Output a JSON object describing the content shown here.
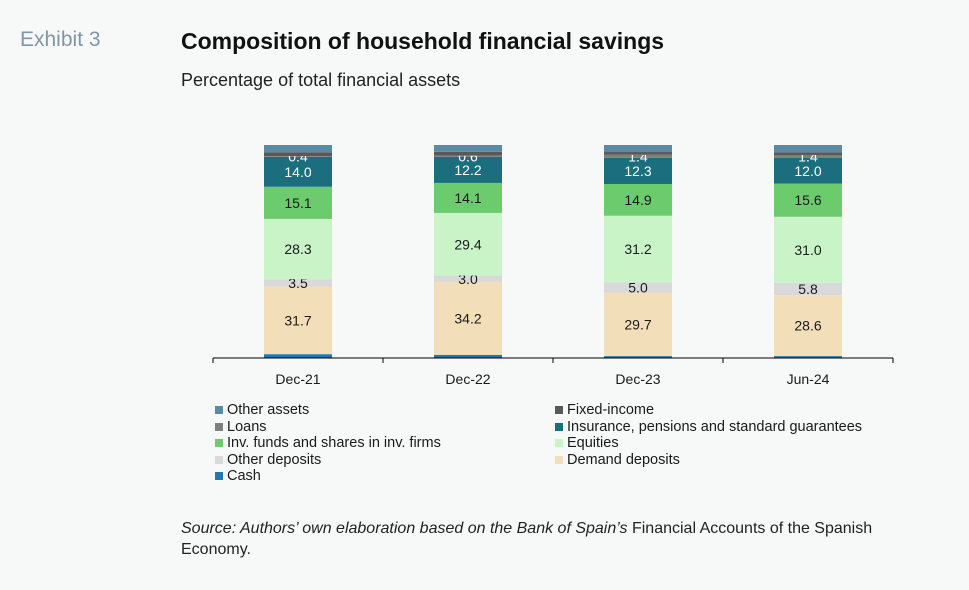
{
  "header": {
    "exhibit": "Exhibit 3",
    "title": "Composition of household financial savings",
    "subtitle": "Percentage of total financial assets"
  },
  "source": {
    "italic_part": "Source: Authors’ own elaboration based on the Bank of Spain’s",
    "normal_part": " Financial Accounts of the Spanish Economy."
  },
  "legend_order": [
    "Other assets",
    "Fixed-income",
    "Loans",
    "Insurance, pensions and standard guarantees",
    "Inv. funds and shares in inv. firms",
    "Equities",
    "Other deposits",
    "Demand deposits",
    "Cash"
  ],
  "chart_data": {
    "type": "bar",
    "stacked": true,
    "categories": [
      "Dec-21",
      "Dec-22",
      "Dec-23",
      "Jun-24"
    ],
    "ylim": [
      0,
      100
    ],
    "series": [
      {
        "name": "Cash",
        "color": "#1f77b4",
        "values": [
          1.8,
          1.5,
          0.9,
          0.9
        ],
        "labels": [
          "",
          "",
          "",
          ""
        ],
        "label_color": "#1a1a1a"
      },
      {
        "name": "Demand deposits",
        "color": "#f2dfba",
        "values": [
          31.7,
          34.2,
          29.7,
          28.6
        ],
        "labels": [
          "31.7",
          "34.2",
          "29.7",
          "28.6"
        ],
        "label_color": "#1a1a1a"
      },
      {
        "name": "Other deposits",
        "color": "#d9d9d9",
        "values": [
          3.5,
          3.0,
          5.0,
          5.8
        ],
        "labels": [
          "3.5",
          "3.0",
          "5.0",
          "5.8"
        ],
        "label_color": "#1a1a1a"
      },
      {
        "name": "Equities",
        "color": "#c8f4c8",
        "values": [
          28.3,
          29.4,
          31.2,
          31.0
        ],
        "labels": [
          "28.3",
          "29.4",
          "31.2",
          "31.0"
        ],
        "label_color": "#1a1a1a"
      },
      {
        "name": "Inv. funds and shares in inv. firms",
        "color": "#6ccb6c",
        "values": [
          15.1,
          14.1,
          14.9,
          15.6
        ],
        "labels": [
          "15.1",
          "14.1",
          "14.9",
          "15.6"
        ],
        "label_color": "#1a1a1a"
      },
      {
        "name": "Insurance, pensions and standard guarantees",
        "color": "#1a6e7e",
        "values": [
          14.0,
          12.2,
          12.3,
          12.0
        ],
        "labels": [
          "14.0",
          "12.2",
          "12.3",
          "12.0"
        ],
        "label_color": "#ffffff"
      },
      {
        "name": "Loans",
        "color": "#7f7f7f",
        "values": [
          0.4,
          0.6,
          1.4,
          1.4
        ],
        "labels": [
          "0.4",
          "0.6",
          "1.4",
          "1.4"
        ],
        "label_color": "#ffffff"
      },
      {
        "name": "Fixed-income",
        "color": "#595959",
        "values": [
          1.8,
          1.8,
          1.3,
          1.3
        ],
        "labels": [
          "",
          "",
          "",
          ""
        ],
        "label_color": "#ffffff"
      },
      {
        "name": "Other assets",
        "color": "#5a8aa6",
        "values": [
          3.4,
          3.2,
          3.3,
          3.4
        ],
        "labels": [
          "",
          "",
          "",
          ""
        ],
        "label_color": "#ffffff"
      }
    ]
  }
}
